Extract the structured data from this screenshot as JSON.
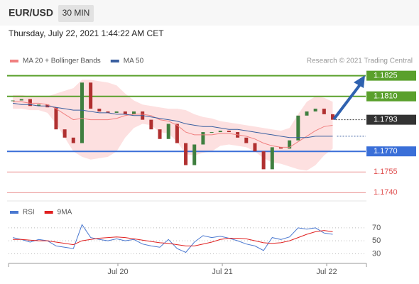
{
  "header": {
    "symbol": "EUR/USD",
    "timeframe": "30 MIN",
    "timestamp": "Thursday, July 22, 2021 1:44:22 AM CET"
  },
  "chart_data": [
    {
      "type": "candlestick",
      "credit": "Research © 2021 Trading Central",
      "x": [
        0,
        1,
        2,
        3,
        4,
        5,
        6,
        7,
        8,
        9,
        10,
        11,
        12,
        13,
        14,
        15,
        16,
        17,
        18,
        19,
        20,
        21,
        22,
        23,
        24,
        25,
        26,
        27,
        28,
        29,
        30,
        31,
        32,
        33,
        34,
        35,
        36,
        37
      ],
      "close": [
        1.1807,
        1.1808,
        1.1803,
        1.1804,
        1.1802,
        1.1786,
        1.178,
        1.1776,
        1.182,
        1.1801,
        1.1799,
        1.1798,
        1.1799,
        1.1797,
        1.1799,
        1.1793,
        1.1786,
        1.1779,
        1.179,
        1.1776,
        1.176,
        1.1775,
        1.1784,
        1.1784,
        1.1785,
        1.1784,
        1.178,
        1.1776,
        1.177,
        1.1757,
        1.1773,
        1.1772,
        1.1778,
        1.1796,
        1.1799,
        1.1801,
        1.1797,
        1.1793
      ],
      "up_color": "#3f7f3f",
      "down_color": "#b03030",
      "series": [
        {
          "name": "MA 20 + Bollinger Bands",
          "color": "#f08080",
          "values": [
            1.1806,
            1.1806,
            1.1805,
            1.1805,
            1.1804,
            1.1801,
            1.1797,
            1.1793,
            1.1794,
            1.1793,
            1.1793,
            1.1793,
            1.1794,
            1.1796,
            1.1797,
            1.1797,
            1.1796,
            1.1793,
            1.1792,
            1.1789,
            1.1784,
            1.1782,
            1.1782,
            1.1782,
            1.1783,
            1.1783,
            1.1782,
            1.1781,
            1.1779,
            1.1776,
            1.1774,
            1.1773,
            1.1773,
            1.1777,
            1.1781,
            1.1785,
            1.1788,
            1.1789
          ],
          "upper": [
            1.1811,
            1.1811,
            1.181,
            1.181,
            1.181,
            1.1812,
            1.1814,
            1.1816,
            1.1822,
            1.1822,
            1.1821,
            1.182,
            1.1818,
            1.1812,
            1.1807,
            1.1804,
            1.1803,
            1.1802,
            1.1801,
            1.1801,
            1.18,
            1.1797,
            1.1795,
            1.1794,
            1.1792,
            1.1791,
            1.179,
            1.1789,
            1.1788,
            1.1787,
            1.1786,
            1.1785,
            1.1787,
            1.1797,
            1.1806,
            1.181,
            1.1809,
            1.1806
          ],
          "lower": [
            1.1801,
            1.1801,
            1.18,
            1.18,
            1.1798,
            1.179,
            1.178,
            1.177,
            1.1766,
            1.1764,
            1.1765,
            1.1766,
            1.177,
            1.178,
            1.1787,
            1.179,
            1.1789,
            1.1784,
            1.1783,
            1.1777,
            1.1768,
            1.1767,
            1.1769,
            1.177,
            1.1774,
            1.1775,
            1.1774,
            1.1773,
            1.177,
            1.1765,
            1.1762,
            1.1761,
            1.1759,
            1.1757,
            1.1756,
            1.176,
            1.1767,
            1.1772
          ],
          "band_color": "#fde0e0"
        },
        {
          "name": "MA 50",
          "color": "#3a5fa0",
          "values": [
            1.1805,
            1.1804,
            1.1804,
            1.1803,
            1.1803,
            1.1802,
            1.1801,
            1.18,
            1.18,
            1.1799,
            1.1798,
            1.1798,
            1.1797,
            1.1797,
            1.1796,
            1.1796,
            1.1795,
            1.1794,
            1.1793,
            1.1792,
            1.179,
            1.1789,
            1.1788,
            1.1788,
            1.1787,
            1.1786,
            1.1786,
            1.1785,
            1.1784,
            1.1783,
            1.1782,
            1.1781,
            1.178,
            1.178,
            1.178,
            1.1781,
            1.1781,
            1.1781
          ]
        }
      ],
      "levels": [
        {
          "value": 1.1825,
          "label": "1.1825",
          "color": "#5aa02c",
          "style": "box",
          "line": "solid"
        },
        {
          "value": 1.181,
          "label": "1.1810",
          "color": "#5aa02c",
          "style": "box",
          "line": "solid"
        },
        {
          "value": 1.1793,
          "label": "1.1793",
          "color": "#333333",
          "style": "box",
          "line": "dotted"
        },
        {
          "value": 1.177,
          "label": "1.1770",
          "color": "#3a6fd8",
          "style": "box",
          "line": "solid"
        },
        {
          "value": 1.1755,
          "label": "1.1755",
          "color": "#e05050",
          "style": "text",
          "line": "thin"
        },
        {
          "value": 1.174,
          "label": "1.1740",
          "color": "#e05050",
          "style": "text",
          "line": "thin"
        }
      ],
      "xlim": [
        -0.5,
        40.9
      ],
      "ylim": [
        1.1735,
        1.1831
      ]
    },
    {
      "type": "line",
      "x": [
        0,
        1,
        2,
        3,
        4,
        5,
        6,
        7,
        8,
        9,
        10,
        11,
        12,
        13,
        14,
        15,
        16,
        17,
        18,
        19,
        20,
        21,
        22,
        23,
        24,
        25,
        26,
        27,
        28,
        29,
        30,
        31,
        32,
        33,
        34,
        35,
        36,
        37
      ],
      "series": [
        {
          "name": "RSI",
          "color": "#4a78d0",
          "values": [
            55,
            52,
            48,
            52,
            50,
            42,
            40,
            38,
            75,
            55,
            52,
            50,
            53,
            50,
            52,
            45,
            42,
            40,
            52,
            38,
            32,
            48,
            58,
            55,
            57,
            54,
            50,
            45,
            42,
            35,
            55,
            52,
            56,
            70,
            68,
            70,
            62,
            60
          ]
        },
        {
          "name": "9MA",
          "color": "#e02020",
          "values": [
            52,
            52,
            51,
            50,
            50,
            48,
            46,
            44,
            50,
            52,
            54,
            55,
            56,
            55,
            53,
            51,
            49,
            47,
            46,
            44,
            42,
            42,
            45,
            48,
            52,
            54,
            54,
            53,
            50,
            47,
            46,
            47,
            50,
            55,
            60,
            64,
            66,
            64
          ]
        }
      ],
      "xlim": [
        -0.5,
        40.9
      ],
      "ylim": [
        15,
        93
      ],
      "yticks": [
        30,
        50,
        70
      ],
      "xticks": [
        {
          "value": 12.15,
          "label": "Jul 20"
        },
        {
          "value": 24.23,
          "label": "Jul 21"
        },
        {
          "value": 36.3,
          "label": "Jul 22"
        }
      ]
    }
  ]
}
